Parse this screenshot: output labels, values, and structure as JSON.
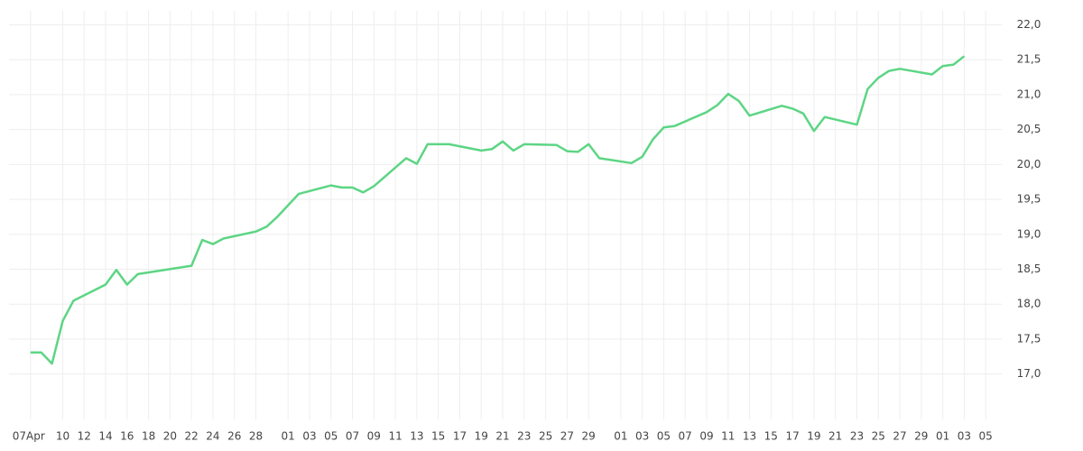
{
  "chart_data": {
    "type": "line",
    "x": [
      0,
      1,
      2,
      3,
      4,
      7,
      8,
      9,
      10,
      15,
      16,
      17,
      18,
      21,
      22,
      23,
      25,
      28,
      29,
      30,
      31,
      32,
      35,
      36,
      37,
      39,
      42,
      43,
      44,
      45,
      46,
      49,
      50,
      51,
      52,
      53,
      56,
      57,
      58,
      59,
      60,
      63,
      64,
      65,
      66,
      67,
      70,
      71,
      72,
      73,
      74,
      77,
      78,
      79,
      80,
      81,
      84,
      85,
      86,
      87
    ],
    "series": [
      {
        "color": "#5dd584",
        "values": [
          17.31,
          17.31,
          17.15,
          17.76,
          18.05,
          18.28,
          18.49,
          18.28,
          18.43,
          18.55,
          18.92,
          18.86,
          18.94,
          19.04,
          19.11,
          19.25,
          19.58,
          19.7,
          19.67,
          19.67,
          19.6,
          19.69,
          20.09,
          20.01,
          20.29,
          20.29,
          20.2,
          20.22,
          20.33,
          20.2,
          20.29,
          20.28,
          20.19,
          20.18,
          20.29,
          20.09,
          20.02,
          20.11,
          20.36,
          20.53,
          20.55,
          20.75,
          20.85,
          21.01,
          20.91,
          20.7,
          20.84,
          20.8,
          20.73,
          20.48,
          20.68,
          20.57,
          21.08,
          21.24,
          21.34,
          21.37,
          21.29,
          21.41,
          21.43,
          21.55
        ]
      }
    ],
    "xlim": [
      -2,
      90.5
    ],
    "xticks": [
      {
        "value": 0,
        "label": "07Apr"
      },
      {
        "value": 3,
        "label": "10"
      },
      {
        "value": 5,
        "label": "12"
      },
      {
        "value": 7,
        "label": "14"
      },
      {
        "value": 9,
        "label": "16"
      },
      {
        "value": 11,
        "label": "18"
      },
      {
        "value": 13,
        "label": "20"
      },
      {
        "value": 15,
        "label": "22"
      },
      {
        "value": 17,
        "label": "24"
      },
      {
        "value": 19,
        "label": "26"
      },
      {
        "value": 21,
        "label": "28"
      },
      {
        "value": 24,
        "label": "01"
      },
      {
        "value": 26,
        "label": "03"
      },
      {
        "value": 28,
        "label": "05"
      },
      {
        "value": 30,
        "label": "07"
      },
      {
        "value": 32,
        "label": "09"
      },
      {
        "value": 34,
        "label": "11"
      },
      {
        "value": 36,
        "label": "13"
      },
      {
        "value": 38,
        "label": "15"
      },
      {
        "value": 40,
        "label": "17"
      },
      {
        "value": 42,
        "label": "19"
      },
      {
        "value": 44,
        "label": "21"
      },
      {
        "value": 46,
        "label": "23"
      },
      {
        "value": 48,
        "label": "25"
      },
      {
        "value": 50,
        "label": "27"
      },
      {
        "value": 52,
        "label": "29"
      },
      {
        "value": 55,
        "label": "01"
      },
      {
        "value": 57,
        "label": "03"
      },
      {
        "value": 59,
        "label": "05"
      },
      {
        "value": 61,
        "label": "07"
      },
      {
        "value": 63,
        "label": "09"
      },
      {
        "value": 65,
        "label": "11"
      },
      {
        "value": 67,
        "label": "13"
      },
      {
        "value": 69,
        "label": "15"
      },
      {
        "value": 71,
        "label": "17"
      },
      {
        "value": 73,
        "label": "19"
      },
      {
        "value": 75,
        "label": "21"
      },
      {
        "value": 77,
        "label": "23"
      },
      {
        "value": 79,
        "label": "25"
      },
      {
        "value": 81,
        "label": "27"
      },
      {
        "value": 83,
        "label": "29"
      },
      {
        "value": 85,
        "label": "01"
      },
      {
        "value": 87,
        "label": "03"
      },
      {
        "value": 89,
        "label": "05"
      }
    ],
    "ylim": [
      16.35,
      22.2
    ],
    "yticks": [
      {
        "value": 17.0,
        "label": "17,0"
      },
      {
        "value": 17.5,
        "label": "17,5"
      },
      {
        "value": 18.0,
        "label": "18,0"
      },
      {
        "value": 18.5,
        "label": "18,5"
      },
      {
        "value": 19.0,
        "label": "19,0"
      },
      {
        "value": 19.5,
        "label": "19,5"
      },
      {
        "value": 20.0,
        "label": "20,0"
      },
      {
        "value": 20.5,
        "label": "20,5"
      },
      {
        "value": 21.0,
        "label": "21,0"
      },
      {
        "value": 21.5,
        "label": "21,5"
      },
      {
        "value": 22.0,
        "label": "22,0"
      }
    ],
    "grid": true
  }
}
